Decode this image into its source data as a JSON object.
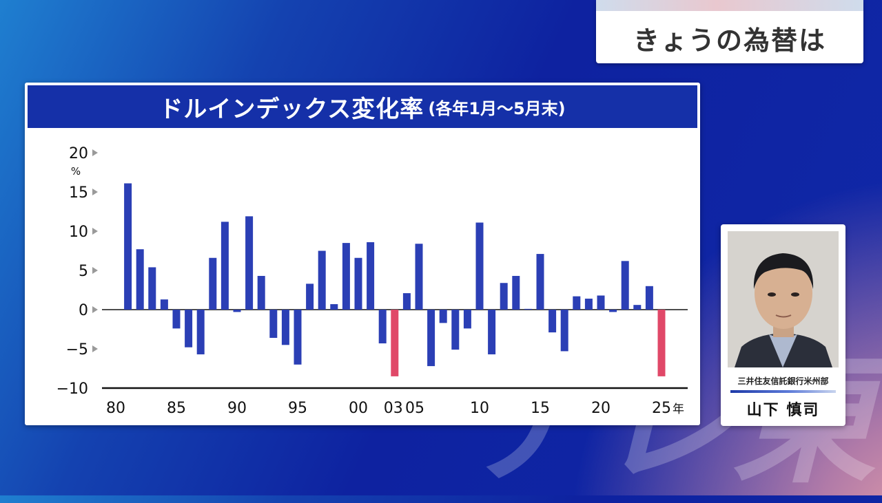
{
  "topic": {
    "label": "きょうの為替は"
  },
  "panel": {
    "title": "ドルインデックス変化率",
    "subtitle": "(各年1月〜5月末)"
  },
  "person": {
    "org": "三井住友信託銀行米州部",
    "name": "山下 慎司"
  },
  "watermark": "テレ東",
  "colors": {
    "positive": "#2b3fb5",
    "negative": "#e04868",
    "header": "#1530a8"
  },
  "chart_data": {
    "type": "bar",
    "unit": "%",
    "xlabel_suffix": "年",
    "ylim": [
      -10,
      20
    ],
    "yticks": [
      -10,
      -5,
      0,
      5,
      10,
      15,
      20
    ],
    "x_tick_labels": [
      {
        "year": 1980,
        "label": "80"
      },
      {
        "year": 1985,
        "label": "85"
      },
      {
        "year": 1990,
        "label": "90"
      },
      {
        "year": 1995,
        "label": "95"
      },
      {
        "year": 2000,
        "label": "00"
      },
      {
        "year": 2003,
        "label": "03"
      },
      {
        "year": 2005,
        "label": "05"
      },
      {
        "year": 2010,
        "label": "10"
      },
      {
        "year": 2015,
        "label": "15"
      },
      {
        "year": 2020,
        "label": "20"
      },
      {
        "year": 2025,
        "label": "25"
      }
    ],
    "years": [
      1981,
      1982,
      1983,
      1984,
      1985,
      1986,
      1987,
      1988,
      1989,
      1990,
      1991,
      1992,
      1993,
      1994,
      1995,
      1996,
      1997,
      1998,
      1999,
      2000,
      2001,
      2002,
      2003,
      2004,
      2005,
      2006,
      2007,
      2008,
      2009,
      2010,
      2011,
      2012,
      2013,
      2014,
      2015,
      2016,
      2017,
      2018,
      2019,
      2020,
      2021,
      2022,
      2023,
      2024,
      2025
    ],
    "values": [
      16.1,
      7.7,
      5.4,
      1.3,
      -2.4,
      -4.8,
      -5.7,
      6.6,
      11.2,
      -0.3,
      11.9,
      4.3,
      -3.6,
      -4.5,
      -7.0,
      3.3,
      7.5,
      0.7,
      8.5,
      6.6,
      8.6,
      -4.3,
      -8.5,
      2.1,
      8.4,
      -7.2,
      -1.7,
      -5.1,
      -2.4,
      11.1,
      -5.7,
      3.4,
      4.3,
      0.1,
      7.1,
      -2.9,
      -5.3,
      1.7,
      1.4,
      1.8,
      -0.3,
      6.2,
      0.6,
      3.0,
      -8.5
    ],
    "highlight_years": [
      2003,
      2025
    ]
  }
}
